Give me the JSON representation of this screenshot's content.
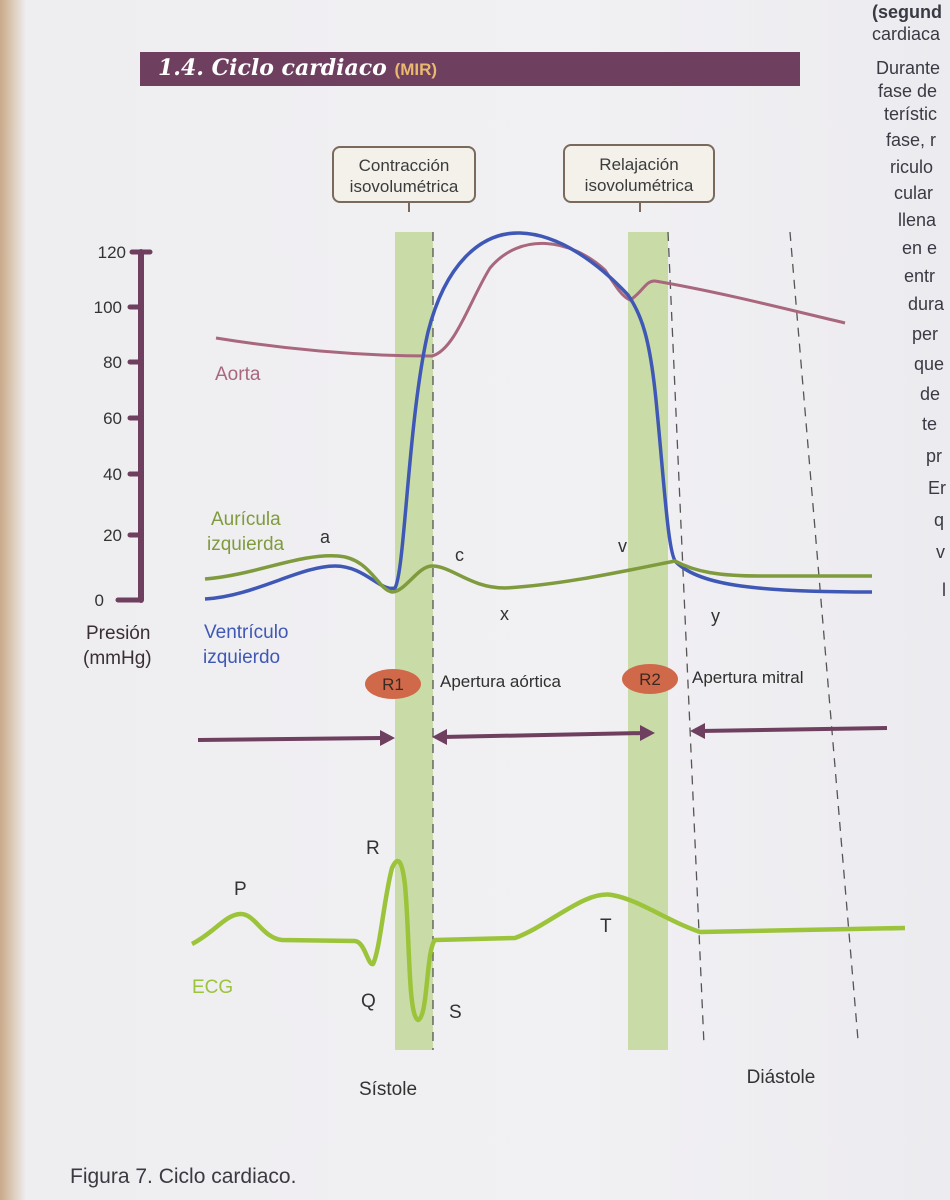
{
  "header": {
    "section": "1.4. Ciclo cardiaco",
    "tag": "(MIR)"
  },
  "side_text": [
    "(segund",
    "cardiaca",
    "Durante",
    "fase de",
    "terístic",
    "fase, r",
    "riculo",
    "cular",
    "llena",
    "en e",
    "entr",
    "dura",
    "per",
    "que",
    "de",
    "te",
    "pr",
    "Er",
    "q",
    "v",
    "l"
  ],
  "y_axis": {
    "ticks": [
      "120",
      "100",
      "80",
      "60",
      "40",
      "20",
      "0"
    ],
    "label_line1": "Presión",
    "label_line2": "(mmHg)"
  },
  "phases": {
    "contraction_line1": "Contracción",
    "contraction_line2": "isovolumétrica",
    "relaxation_line1": "Relajación",
    "relaxation_line2": "isovolumétrica"
  },
  "curves": {
    "aorta": "Aorta",
    "atrium_line1": "Aurícula",
    "atrium_line2": "izquierda",
    "ventricle_line1": "Ventrículo",
    "ventricle_line2": "izquierdo"
  },
  "waves": {
    "a": "a",
    "c": "c",
    "v": "v",
    "x": "x",
    "y": "y"
  },
  "sounds": {
    "r1": "R1",
    "r2": "R2",
    "aortic_opening": "Apertura aórtica",
    "mitral_opening": "Apertura mitral"
  },
  "ecg": {
    "label": "ECG",
    "P": "P",
    "Q": "Q",
    "R": "R",
    "S": "S",
    "T": "T"
  },
  "cycle": {
    "systole": "Sístole",
    "diastole": "Diástole"
  },
  "caption": "Figura 7. Ciclo cardiaco.",
  "colors": {
    "aorta": "#a8677c",
    "atrium": "#7f9b3d",
    "ventricle": "#3f58b5",
    "ecg": "#9bc43a",
    "purple": "#6e3f5f",
    "band": "#c5d9a2",
    "badge": "#d0694a"
  }
}
